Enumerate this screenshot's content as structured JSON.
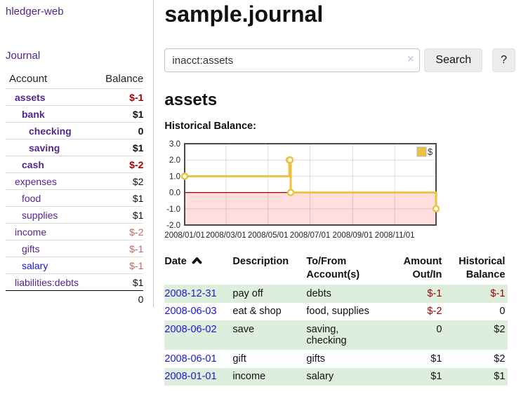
{
  "app": {
    "title": "hledger-web"
  },
  "sidebar": {
    "journal_link": "Journal",
    "accounts_table": {
      "headers": [
        "Account",
        "Balance"
      ],
      "rows": [
        {
          "name": "assets",
          "indent": 1,
          "bold": true,
          "balance": "$-1",
          "balance_class": "neg-strong"
        },
        {
          "name": "bank",
          "indent": 2,
          "bold": true,
          "balance": "$1",
          "balance_class": ""
        },
        {
          "name": "checking",
          "indent": 3,
          "bold": true,
          "balance": "0",
          "balance_class": ""
        },
        {
          "name": "saving",
          "indent": 3,
          "bold": true,
          "balance": "$1",
          "balance_class": ""
        },
        {
          "name": "cash",
          "indent": 2,
          "bold": true,
          "balance": "$-2",
          "balance_class": "neg-strong"
        },
        {
          "name": "expenses",
          "indent": 1,
          "bold": false,
          "balance": "$2",
          "balance_class": ""
        },
        {
          "name": "food",
          "indent": 2,
          "bold": false,
          "balance": "$1",
          "balance_class": ""
        },
        {
          "name": "supplies",
          "indent": 2,
          "bold": false,
          "balance": "$1",
          "balance_class": ""
        },
        {
          "name": "income",
          "indent": 1,
          "bold": false,
          "balance": "$-2",
          "balance_class": "neg-soft"
        },
        {
          "name": "gifts",
          "indent": 2,
          "bold": false,
          "balance": "$-1",
          "balance_class": "neg-soft"
        },
        {
          "name": "salary",
          "indent": 2,
          "bold": false,
          "link_style": "blue",
          "balance": "$-1",
          "balance_class": "neg-soft"
        },
        {
          "name": "liabilities:debts",
          "indent": 1,
          "bold": false,
          "balance": "$1",
          "balance_class": ""
        }
      ],
      "total": "0"
    }
  },
  "header": {
    "title": "sample.journal"
  },
  "search": {
    "value": "inacct:assets",
    "clear_icon": "×",
    "button_label": "Search",
    "help_label": "?"
  },
  "account_page": {
    "title": "assets",
    "chart_label": "Historical Balance:"
  },
  "chart_data": {
    "type": "line",
    "step": true,
    "title": "Historical Balance:",
    "xlabel": "",
    "ylabel": "",
    "series": [
      {
        "name": "$",
        "color": "#edc240",
        "points": [
          [
            "2008-01-01",
            1.0
          ],
          [
            "2008-06-01",
            2.0
          ],
          [
            "2008-06-02",
            2.0
          ],
          [
            "2008-06-03",
            0.0
          ],
          [
            "2008-12-31",
            -1.0
          ]
        ]
      }
    ],
    "xlim": [
      "2008-01-01",
      "2008-12-31"
    ],
    "ylim": [
      -2.0,
      3.0
    ],
    "y_tick_labels": [
      "3.0",
      "2.0",
      "1.0",
      "0.0",
      "-1.0",
      "-2.0"
    ],
    "x_ticks": [
      {
        "date": "2008-01-01",
        "label": "2008/01/01"
      },
      {
        "date": "2008-03-01",
        "label": "2008/03/01"
      },
      {
        "date": "2008-05-01",
        "label": "2008/05/01"
      },
      {
        "date": "2008-07-01",
        "label": "2008/07/01"
      },
      {
        "date": "2008-09-01",
        "label": "2008/09/01"
      },
      {
        "date": "2008-11-01",
        "label": "2008/11/01"
      }
    ],
    "grid": true,
    "legend": {
      "label": "$",
      "color": "#edc240",
      "position": "top-right"
    },
    "negative_fill": "#ffdedd",
    "zero_line_color": "#a40000",
    "border_color": "#4a4a4a"
  },
  "register_table": {
    "headers": {
      "date": "Date",
      "description": "Description",
      "accounts": "To/From\nAccount(s)",
      "amount": "Amount\nOut/In",
      "balance": "Historical\nBalance"
    },
    "sort": "date-ascending",
    "rows": [
      {
        "date": "2008-12-31",
        "description": "pay off",
        "accounts": "debts",
        "amount": "$-1",
        "amount_neg": true,
        "balance": "$-1",
        "balance_neg": true
      },
      {
        "date": "2008-06-03",
        "description": "eat & shop",
        "accounts": "food, supplies",
        "amount": "$-2",
        "amount_neg": true,
        "balance": "0",
        "balance_neg": false
      },
      {
        "date": "2008-06-02",
        "description": "save",
        "accounts": "saving, checking",
        "amount": "0",
        "amount_neg": false,
        "balance": "$2",
        "balance_neg": false
      },
      {
        "date": "2008-06-01",
        "description": "gift",
        "accounts": "gifts",
        "amount": "$1",
        "amount_neg": false,
        "balance": "$2",
        "balance_neg": false
      },
      {
        "date": "2008-01-01",
        "description": "income",
        "accounts": "salary",
        "amount": "$1",
        "amount_neg": false,
        "balance": "$1",
        "balance_neg": false
      }
    ]
  },
  "colors": {
    "link_purple": "#53258f",
    "link_blue": "#1a16d6",
    "negative_strong": "#a00000",
    "negative_soft": "#c46a6a",
    "row_green": "#deeedd",
    "chart_series": "#edc240",
    "chart_negative_fill": "#ffdedd",
    "chart_zero_line": "#a40000"
  }
}
